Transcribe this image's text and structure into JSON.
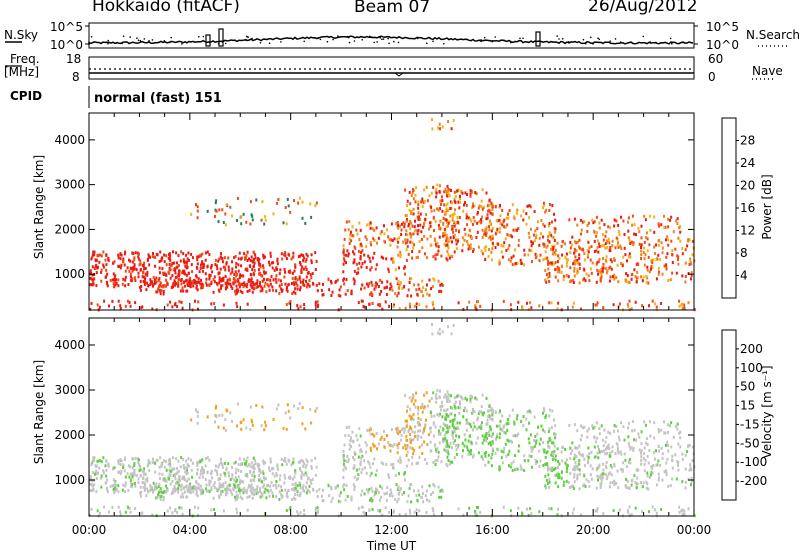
{
  "header": {
    "station": "Hokkaido (fitACF)",
    "beam": "Beam 07",
    "date": "26/Aug/2012"
  },
  "sky_panel": {
    "left_label": "N.Sky",
    "right_label": "N.Search",
    "left_ticks": [
      "10^5",
      "10^0"
    ],
    "right_ticks": [
      "10^5",
      "10^0"
    ]
  },
  "freq_panel": {
    "left_label_1": "Freq.",
    "left_label_2": "[MHz]",
    "right_label": "Nave",
    "left_ticks": [
      "18",
      "8"
    ],
    "right_ticks": [
      "60",
      "0"
    ]
  },
  "cpid_panel": {
    "label": "CPID",
    "text": "normal (fast) 151"
  },
  "chart_data": [
    {
      "type": "heatmap",
      "panel": "power",
      "ylabel": "Slant Range [km]",
      "yticks": [
        1000,
        2000,
        3000,
        4000
      ],
      "ylim": [
        200,
        4600
      ],
      "colorbar_label": "Power [dB]",
      "colorbar_ticks": [
        "4",
        "8",
        "12",
        "16",
        "20",
        "24",
        "28"
      ],
      "colorbar_colors": [
        "#0000f0",
        "#1e3ea0",
        "#2e7a58",
        "#4aa85a",
        "#f0b21a",
        "#f08020",
        "#f04a18",
        "#ec1a10"
      ]
    },
    {
      "type": "heatmap",
      "panel": "velocity",
      "xlabel": "Time UT",
      "ylabel": "Slant Range [km]",
      "xticks": [
        "00:00",
        "04:00",
        "08:00",
        "12:00",
        "16:00",
        "20:00",
        "00:00"
      ],
      "yticks": [
        1000,
        2000,
        3000,
        4000
      ],
      "ylim": [
        200,
        4600
      ],
      "colorbar_label": "Velocity [m s⁻¹]",
      "colorbar_ticks": [
        "200",
        "100",
        "50",
        "15",
        "-15",
        "-50",
        "-100",
        "-200"
      ],
      "colorbar_colors": [
        "#1e38c8",
        "#2e6aa0",
        "#3a8a3a",
        "#5fcf40",
        "#c4c4c4",
        "#f0a020",
        "#f07020",
        "#ec3020",
        "#e00010"
      ]
    }
  ]
}
